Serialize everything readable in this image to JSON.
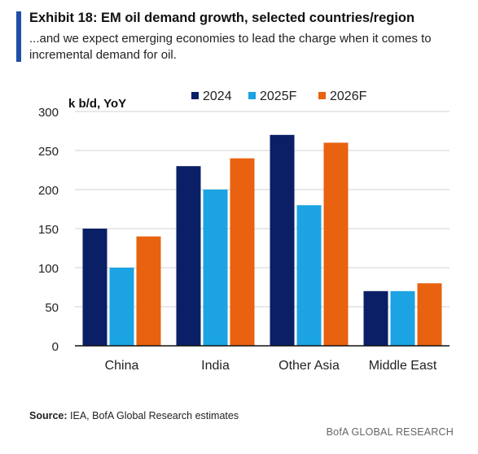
{
  "header": {
    "title": "Exhibit 18: EM oil demand growth, selected countries/region",
    "subtitle": "...and we expect emerging economies to lead the charge when it comes to incremental demand for oil."
  },
  "footer": {
    "source_label": "Source:",
    "source_text": "IEA, BofA Global Research estimates",
    "brand": "BofA GLOBAL RESEARCH"
  },
  "chart_data": {
    "type": "bar",
    "ylabel": "k b/d, YoY",
    "categories": [
      "China",
      "India",
      "Other Asia",
      "Middle East"
    ],
    "series": [
      {
        "name": "2024",
        "color": "#0a1f66",
        "values": [
          150,
          230,
          270,
          70
        ]
      },
      {
        "name": "2025F",
        "color": "#1ba3e3",
        "values": [
          100,
          200,
          180,
          70
        ]
      },
      {
        "name": "2026F",
        "color": "#e8620f",
        "values": [
          140,
          240,
          260,
          80
        ]
      }
    ],
    "ylim": [
      0,
      300
    ],
    "yticks": [
      0,
      50,
      100,
      150,
      200,
      250,
      300
    ],
    "grid": true,
    "legend_position": "top-right"
  }
}
